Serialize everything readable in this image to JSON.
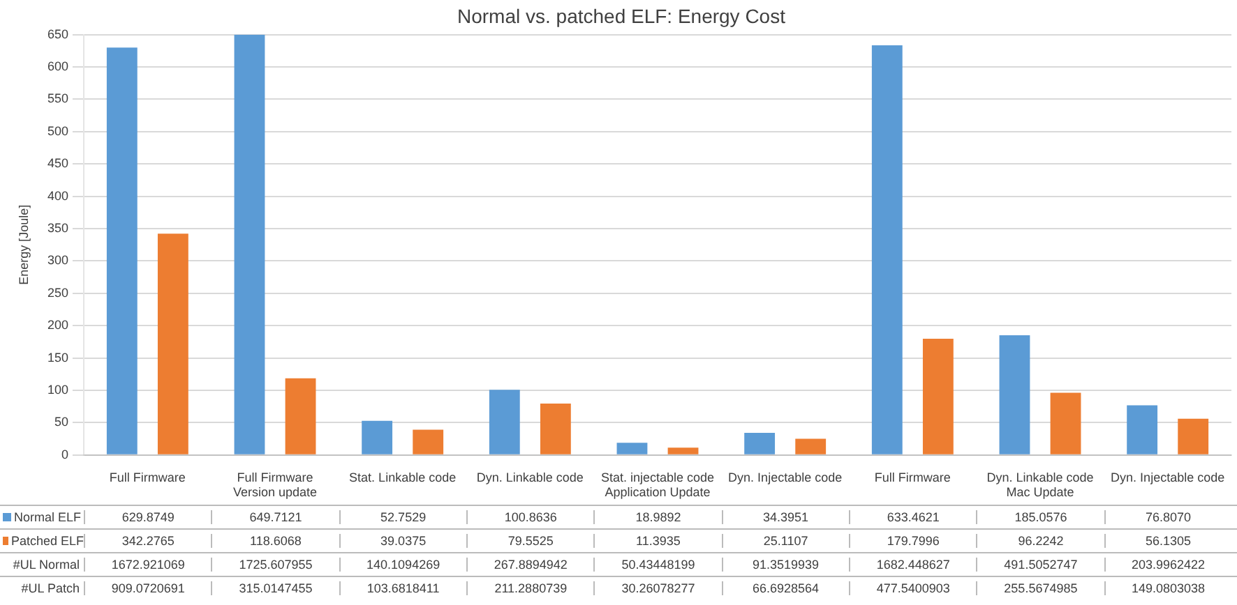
{
  "chart_data": {
    "type": "bar",
    "title": "Normal vs. patched ELF: Energy Cost",
    "ylabel": "Energy [Joule]",
    "categories": [
      "Full Firmware",
      "Full Firmware",
      "Stat. Linkable code",
      "Dyn. Linkable code",
      "Stat. injectable code",
      "Dyn. Injectable code",
      "Full Firmware",
      "Dyn. Linkable code",
      "Dyn. Injectable code"
    ],
    "series": [
      {
        "name": "Normal ELF",
        "color": "#5b9bd5",
        "values": [
          629.8749,
          649.7121,
          52.7529,
          100.8636,
          18.9892,
          34.3951,
          633.4621,
          185.0576,
          76.807
        ],
        "value_labels": [
          "629.8749",
          "649.7121",
          "52.7529",
          "100.8636",
          "18.9892",
          "34.3951",
          "633.4621",
          "185.0576",
          "76.8070"
        ]
      },
      {
        "name": "Patched ELF",
        "color": "#ed7d31",
        "values": [
          342.2765,
          118.6068,
          39.0375,
          79.5525,
          11.3935,
          25.1107,
          179.7996,
          96.2242,
          56.1305
        ],
        "value_labels": [
          "342.2765",
          "118.6068",
          "39.0375",
          "79.5525",
          "11.3935",
          "25.1107",
          "179.7996",
          "96.2242",
          "56.1305"
        ]
      }
    ],
    "annotations": [
      "Version update",
      "Application Update",
      "Mac Update",
      "#UL Normal",
      "1672.921069",
      "1725.607955",
      "140.1094269",
      "267.8894942",
      "50.43448199",
      "91.3519939",
      "1682.448627",
      "491.5052747",
      "203.9962422",
      "#UL Patch",
      "909.0720691",
      "315.0147455",
      "103.6818411",
      "211.2880739",
      "30.26078277",
      "66.6928564",
      "477.5400903",
      "255.5674985",
      "149.0803038"
    ],
    "ylim": [
      0,
      650
    ],
    "yticks": [
      0,
      50,
      100,
      150,
      200,
      250,
      300,
      350,
      400,
      450,
      500,
      550,
      600,
      650
    ],
    "grid": "y",
    "legend": "bottom"
  }
}
